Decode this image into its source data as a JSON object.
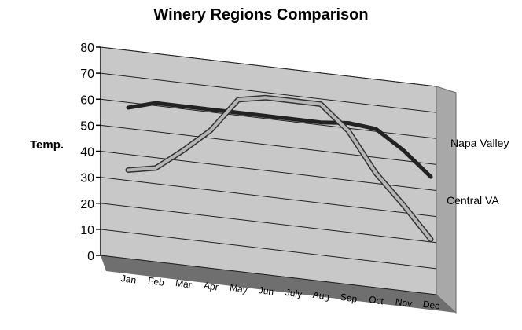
{
  "chart_data": {
    "type": "line",
    "title": "Winery Regions Comparison",
    "ylabel": "Temp.",
    "xlabel": "",
    "ylim": [
      0,
      80
    ],
    "yticks": [
      0,
      10,
      20,
      30,
      40,
      50,
      60,
      70,
      80
    ],
    "categories": [
      "Jan",
      "Feb",
      "Mar",
      "Apr",
      "May",
      "Jun",
      "July",
      "Aug",
      "Sep",
      "Oct",
      "Nov",
      "Dec"
    ],
    "series": [
      {
        "name": "Napa Valley",
        "color": "#222222",
        "values": [
          58,
          61,
          61,
          61,
          61,
          61,
          61,
          61,
          62,
          61,
          54,
          45
        ]
      },
      {
        "name": "Central VA",
        "color": "#b5b5b5",
        "outline": "#333333",
        "values": [
          34,
          36,
          44,
          53,
          66,
          68,
          68,
          68,
          59,
          44,
          33,
          21
        ]
      }
    ],
    "grid": true,
    "legend": "series labels at line ends (right)",
    "style": "3d",
    "wall_color": "#c8c8c8",
    "floor_color": "#6f6f6f"
  }
}
